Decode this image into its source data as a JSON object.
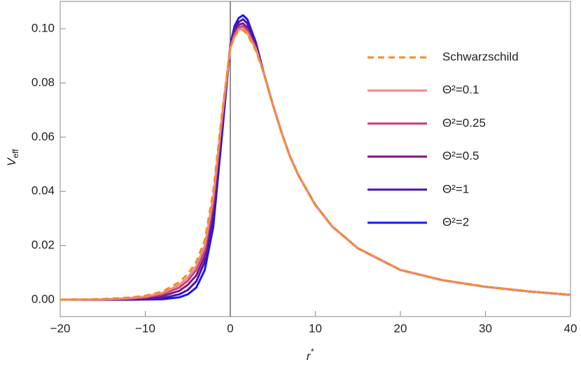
{
  "chart_data": {
    "type": "line",
    "xlabel": "r",
    "xlabel_sup": "*",
    "ylabel": "V",
    "ylabel_sub": "eff",
    "x": [
      -20,
      -15,
      -12,
      -10,
      -8,
      -6,
      -5,
      -4,
      -3,
      -2,
      -1,
      0,
      0.5,
      1,
      1.5,
      2,
      3,
      4,
      5,
      6,
      7,
      8,
      10,
      12,
      15,
      20,
      25,
      30,
      35,
      40
    ],
    "series": [
      {
        "name": "Schwarzschild",
        "color": "#f28e1c",
        "dashed": true,
        "values": [
          0,
          0.0003,
          0.0008,
          0.0015,
          0.003,
          0.0065,
          0.0095,
          0.014,
          0.022,
          0.04,
          0.068,
          0.093,
          0.097,
          0.0995,
          0.0995,
          0.098,
          0.092,
          0.083,
          0.072,
          0.062,
          0.053,
          0.046,
          0.035,
          0.027,
          0.019,
          0.011,
          0.0072,
          0.0048,
          0.0031,
          0.0018
        ]
      },
      {
        "name": "Θ²=0.1",
        "color": "#f08a8a",
        "values": [
          0,
          0.0002,
          0.0006,
          0.0012,
          0.0025,
          0.0055,
          0.0082,
          0.0125,
          0.02,
          0.038,
          0.067,
          0.093,
          0.097,
          0.0998,
          0.1,
          0.0985,
          0.0925,
          0.083,
          0.072,
          0.062,
          0.053,
          0.046,
          0.035,
          0.027,
          0.019,
          0.011,
          0.0072,
          0.0048,
          0.0031,
          0.0018
        ]
      },
      {
        "name": "Θ²=0.25",
        "color": "#c8407a",
        "values": [
          0,
          0.0001,
          0.0004,
          0.0009,
          0.002,
          0.0045,
          0.007,
          0.011,
          0.018,
          0.036,
          0.066,
          0.093,
          0.098,
          0.1005,
          0.101,
          0.0995,
          0.093,
          0.083,
          0.072,
          0.062,
          0.053,
          0.046,
          0.035,
          0.027,
          0.019,
          0.011,
          0.0072,
          0.0048,
          0.0031,
          0.0018
        ]
      },
      {
        "name": "Θ²=0.5",
        "color": "#7a1a82",
        "values": [
          0,
          0.0001,
          0.0002,
          0.0005,
          0.0013,
          0.0033,
          0.0055,
          0.009,
          0.016,
          0.034,
          0.065,
          0.0935,
          0.099,
          0.1015,
          0.102,
          0.1005,
          0.0935,
          0.083,
          0.072,
          0.062,
          0.053,
          0.046,
          0.035,
          0.027,
          0.019,
          0.011,
          0.0072,
          0.0048,
          0.0031,
          0.0018
        ]
      },
      {
        "name": "Θ²=1",
        "color": "#4a14b4",
        "values": [
          0,
          0,
          0.0001,
          0.0002,
          0.0006,
          0.002,
          0.0036,
          0.0068,
          0.014,
          0.031,
          0.063,
          0.0935,
          0.1,
          0.1025,
          0.1035,
          0.102,
          0.094,
          0.083,
          0.072,
          0.062,
          0.053,
          0.046,
          0.035,
          0.027,
          0.019,
          0.011,
          0.0072,
          0.0048,
          0.0031,
          0.0018
        ]
      },
      {
        "name": "Θ²=2",
        "color": "#1a1aee",
        "values": [
          0,
          0,
          0,
          0.0001,
          0.0002,
          0.0009,
          0.002,
          0.0045,
          0.011,
          0.027,
          0.06,
          0.094,
          0.101,
          0.104,
          0.105,
          0.1035,
          0.095,
          0.083,
          0.072,
          0.062,
          0.053,
          0.046,
          0.035,
          0.027,
          0.019,
          0.011,
          0.0072,
          0.0048,
          0.0031,
          0.0018
        ]
      }
    ],
    "xlim": [
      -20,
      40
    ],
    "xticks": [
      {
        "value": -20,
        "label": "−20"
      },
      {
        "value": -10,
        "label": "−10"
      },
      0,
      10,
      20,
      30,
      40
    ],
    "ylim": [
      -0.0062,
      0.1101
    ],
    "yticks": [
      {
        "value": 0,
        "label": "0.00"
      },
      {
        "value": 0.02,
        "label": "0.02"
      },
      {
        "value": 0.04,
        "label": "0.04"
      },
      {
        "value": 0.06,
        "label": "0.06"
      },
      {
        "value": 0.08,
        "label": "0.08"
      },
      {
        "value": 0.1,
        "label": "0.10"
      }
    ],
    "legend": "upper-right"
  }
}
